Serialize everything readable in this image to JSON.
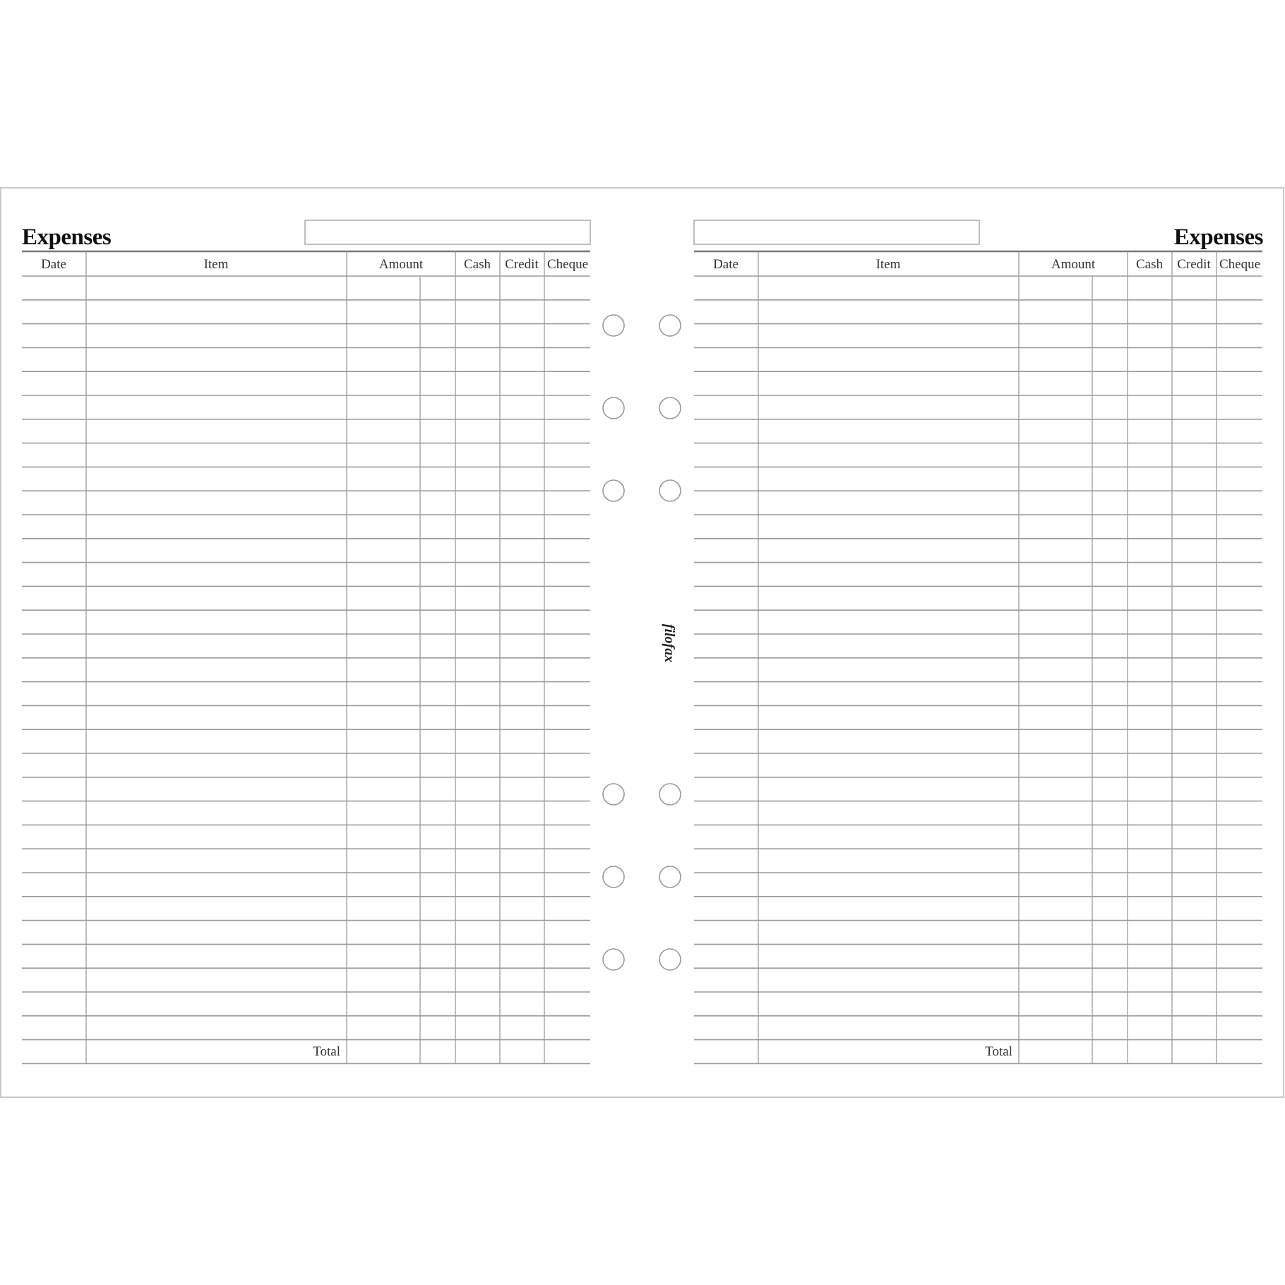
{
  "pages": [
    {
      "title": "Expenses",
      "name_field": "",
      "columns": [
        "Date",
        "Item",
        "Amount",
        "Cash",
        "Credit",
        "Cheque"
      ],
      "total_label": "Total"
    },
    {
      "title": "Expenses",
      "name_field": "",
      "columns": [
        "Date",
        "Item",
        "Amount",
        "Cash",
        "Credit",
        "Cheque"
      ],
      "total_label": "Total"
    }
  ],
  "brand": "filofax",
  "colors": {
    "lines": "#9a9a9a",
    "text": "#111111",
    "border": "#c8c8c8"
  }
}
